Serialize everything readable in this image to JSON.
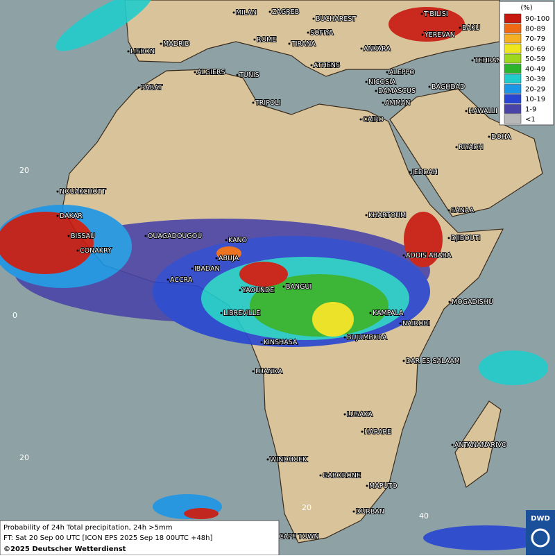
{
  "legend": {
    "unit": "(%)",
    "items": [
      {
        "label": "90-100",
        "color": "#c8190f"
      },
      {
        "label": "80-89",
        "color": "#f06a14"
      },
      {
        "label": "70-79",
        "color": "#f5b025"
      },
      {
        "label": "60-69",
        "color": "#f0e61e"
      },
      {
        "label": "50-59",
        "color": "#9ed81e"
      },
      {
        "label": "40-49",
        "color": "#2cb42c"
      },
      {
        "label": "30-39",
        "color": "#22cccc"
      },
      {
        "label": "20-29",
        "color": "#1e96e6"
      },
      {
        "label": "10-19",
        "color": "#2846d2"
      },
      {
        "label": "1-9",
        "color": "#4a44a8"
      },
      {
        "label": "<1",
        "color": "#b8b8b8"
      }
    ]
  },
  "cities": [
    "MILAN",
    "ZAGREB",
    "BUCHAREST",
    "SOFIYA",
    "ROME",
    "TIRANA",
    "MADRID",
    "LISBON",
    "ANKARA",
    "T'BILISI",
    "YEREVAN",
    "BAKU",
    "TEHRAN",
    "ATHENS",
    "ALGIERS",
    "TUNIS",
    "ALEPPO",
    "RABAT",
    "NICOSIA",
    "DAMASCUS",
    "BAGHDAD",
    "TRIPOLI",
    "AMMAN",
    "HAWALLI",
    "CAIRO",
    "DOHA",
    "RIYADH",
    "JEDDAH",
    "NOUAKCHOTT",
    "SANAA",
    "KHARTOUM",
    "DAKAR",
    "BISSAU",
    "OUAGADOUGOU",
    "DJIBOUTI",
    "KANO",
    "CONAKRY",
    "ABUJA",
    "ADDIS ABABA",
    "IBADAN",
    "ACCRA",
    "YAOUNDE",
    "BANGUI",
    "MOGADISHU",
    "LIBREVILLE",
    "KAMPALA",
    "NAIROBI",
    "BUJUMBURA",
    "KINSHASA",
    "DAR ES SALAAM",
    "LUANDA",
    "LUSAKA",
    "HARARE",
    "ANTANANARIVO",
    "WINDHOEK",
    "GABORONE",
    "MAPUTO",
    "DURBAN",
    "CAPE TOWN"
  ],
  "grid_labels": [
    "20",
    "0",
    "20",
    "20",
    "40"
  ],
  "footer": {
    "line1": "Probability of 24h Total precipitation, 24h >5mm",
    "line2": "FT: Sat 20 Sep 00 UTC [ICON EPS 2025 Sep 18 00UTC +48h]",
    "line3": "©2025 Deutscher Wetterdienst"
  },
  "logo": "DWD"
}
